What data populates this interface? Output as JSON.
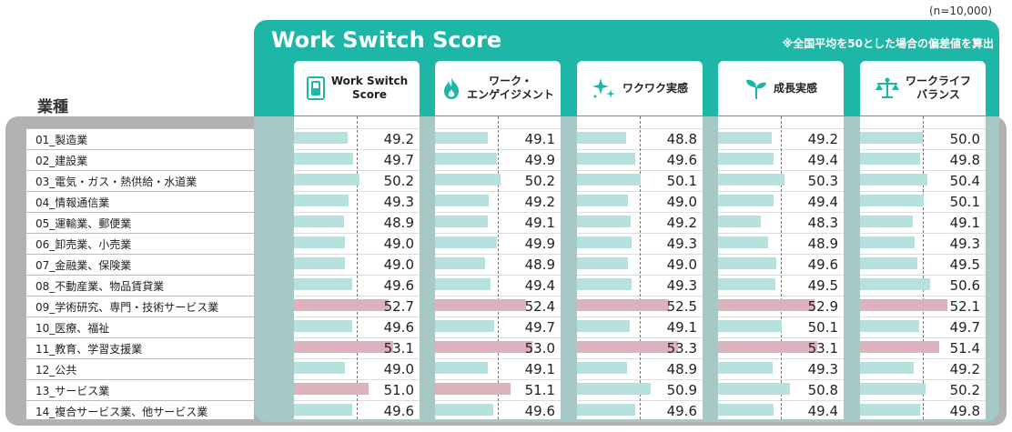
{
  "header": {
    "n_note": "(n=10,000)",
    "title": "Work Switch Score",
    "sub_note": "※全国平均を50とした場合の偏差値を算出",
    "industry_heading": "業種"
  },
  "columns": [
    {
      "label": "Work Switch\nScore",
      "icon": "switch-icon"
    },
    {
      "label": "ワーク・\nエンゲイジメント",
      "icon": "flame-icon"
    },
    {
      "label": "ワクワク実感",
      "icon": "sparkle-icon"
    },
    {
      "label": "成長実感",
      "icon": "sprout-icon"
    },
    {
      "label": "ワークライフ\nバランス",
      "icon": "balance-icon"
    }
  ],
  "colors": {
    "teal": "#1eb6a7",
    "bar_normal": "#b7e1dc",
    "bar_high": "#deb2bc"
  },
  "chart_data": {
    "type": "bar",
    "categories": [
      "01_製造業",
      "02_建設業",
      "03_電気・ガス・熱供給・水道業",
      "04_情報通信業",
      "05_運輸業、郵便業",
      "06_卸売業、小売業",
      "07_金融業、保険業",
      "08_不動産業、物品賃貸業",
      "09_学術研究、専門・技術サービス業",
      "10_医療、福祉",
      "11_教育、学習支援業",
      "12_公共",
      "13_サービス業",
      "14_複合サービス業、他サービス業"
    ],
    "reference_line": 50,
    "series": [
      {
        "name": "Work Switch Score",
        "values": [
          49.2,
          49.7,
          50.2,
          49.3,
          48.9,
          49.0,
          49.0,
          49.6,
          52.7,
          49.6,
          53.1,
          49.0,
          51.0,
          49.6
        ]
      },
      {
        "name": "ワーク・エンゲイジメント",
        "values": [
          49.1,
          49.9,
          50.2,
          49.2,
          49.1,
          49.9,
          48.9,
          49.4,
          52.4,
          49.7,
          53.0,
          49.1,
          51.1,
          49.6
        ]
      },
      {
        "name": "ワクワク実感",
        "values": [
          48.8,
          49.6,
          50.1,
          49.0,
          49.2,
          49.3,
          49.0,
          49.3,
          52.5,
          49.1,
          53.3,
          48.9,
          50.9,
          49.6
        ]
      },
      {
        "name": "成長実感",
        "values": [
          49.2,
          49.4,
          50.3,
          49.4,
          48.3,
          48.9,
          49.6,
          49.5,
          52.9,
          50.1,
          53.1,
          49.3,
          50.8,
          49.4
        ]
      },
      {
        "name": "ワークライフバランス",
        "values": [
          50.0,
          49.8,
          50.4,
          50.1,
          49.1,
          49.3,
          49.5,
          50.6,
          52.1,
          49.7,
          51.4,
          49.2,
          50.2,
          49.8
        ]
      }
    ]
  }
}
